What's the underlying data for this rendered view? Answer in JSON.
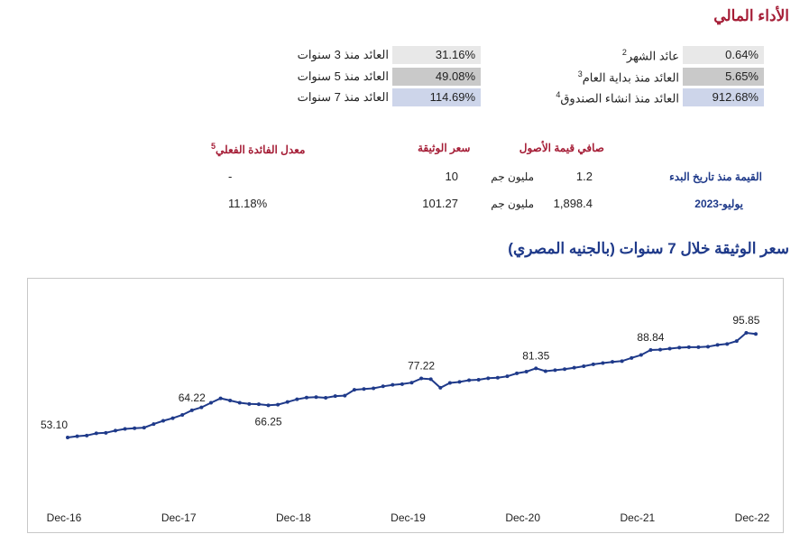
{
  "header": {
    "title": "الأداء المالي"
  },
  "returns": [
    {
      "label": "عائد الشهر",
      "note": "2",
      "value": "0.64%"
    },
    {
      "label": "العائد منذ بداية العام",
      "note": "3",
      "value": "5.65%"
    },
    {
      "label": "العائد منذ انشاء الصندوق",
      "note": "4",
      "value": "912.68%"
    },
    {
      "label": "العائد منذ 3 سنوات",
      "value": "31.16%"
    },
    {
      "label": "العائد منذ 5 سنوات",
      "value": "49.08%"
    },
    {
      "label": "العائد منذ 7 سنوات",
      "value": "114.69%"
    }
  ],
  "info": {
    "headers": [
      "صافي قيمة الأصول",
      "سعر الوثيقة",
      "معدل الفائدة الفعلي"
    ],
    "header_note": "5",
    "rows": [
      [
        "القيمة منذ تاريخ البدء",
        "1.2",
        "مليون جم",
        "10",
        "-"
      ],
      [
        "يوليو-2023",
        "1,898.4",
        "مليون جم",
        "101.27",
        "11.18%"
      ]
    ]
  },
  "chart_data": {
    "type": "line",
    "title": "سعر الوثيقة خلال 7 سنوات (بالجنيه المصري)",
    "color": "#1f3a8a",
    "categories": [
      "Dec-16",
      null,
      null,
      null,
      null,
      null,
      null,
      null,
      null,
      null,
      null,
      null,
      "Dec-17",
      null,
      null,
      null,
      null,
      null,
      null,
      null,
      null,
      null,
      null,
      null,
      "Dec-18",
      null,
      null,
      null,
      null,
      null,
      null,
      null,
      null,
      null,
      null,
      null,
      "Dec-19",
      null,
      null,
      null,
      null,
      null,
      null,
      null,
      null,
      null,
      null,
      null,
      "Dec-20",
      null,
      null,
      null,
      null,
      null,
      null,
      null,
      null,
      null,
      null,
      null,
      "Dec-21",
      null,
      null,
      null,
      null,
      null,
      null,
      null,
      null,
      null,
      null,
      null,
      "Dec-22"
    ],
    "values": [
      53.1,
      53.6,
      53.9,
      54.8,
      55.0,
      55.9,
      56.6,
      56.9,
      57.1,
      58.6,
      59.9,
      61.0,
      62.3,
      64.22,
      65.4,
      67.3,
      69.1,
      68.2,
      67.3,
      66.8,
      66.7,
      66.25,
      66.5,
      67.6,
      68.7,
      69.4,
      69.6,
      69.3,
      70.0,
      70.2,
      72.6,
      72.9,
      73.2,
      74.0,
      74.6,
      74.9,
      75.5,
      77.22,
      76.9,
      73.4,
      75.4,
      75.8,
      76.5,
      76.7,
      77.3,
      77.5,
      78.1,
      79.3,
      80.0,
      81.35,
      80.2,
      80.6,
      81.0,
      81.6,
      82.2,
      83.0,
      83.5,
      84.0,
      84.3,
      85.6,
      86.8,
      88.84,
      89.0,
      89.4,
      89.8,
      90.0,
      90.0,
      90.2,
      90.9,
      91.3,
      92.5,
      95.85,
      95.4
    ],
    "value_labels": [
      "53.10",
      null,
      null,
      null,
      null,
      null,
      null,
      null,
      null,
      null,
      null,
      null,
      null,
      "64.22",
      null,
      null,
      null,
      null,
      null,
      null,
      null,
      "66.25",
      null,
      null,
      null,
      null,
      null,
      null,
      null,
      null,
      null,
      null,
      null,
      null,
      null,
      null,
      null,
      "77.22",
      null,
      null,
      null,
      null,
      null,
      null,
      null,
      null,
      null,
      null,
      null,
      "81.35",
      null,
      null,
      null,
      null,
      null,
      null,
      null,
      null,
      null,
      null,
      null,
      "88.84",
      null,
      null,
      null,
      null,
      null,
      null,
      null,
      null,
      null,
      "95.85",
      null
    ]
  }
}
